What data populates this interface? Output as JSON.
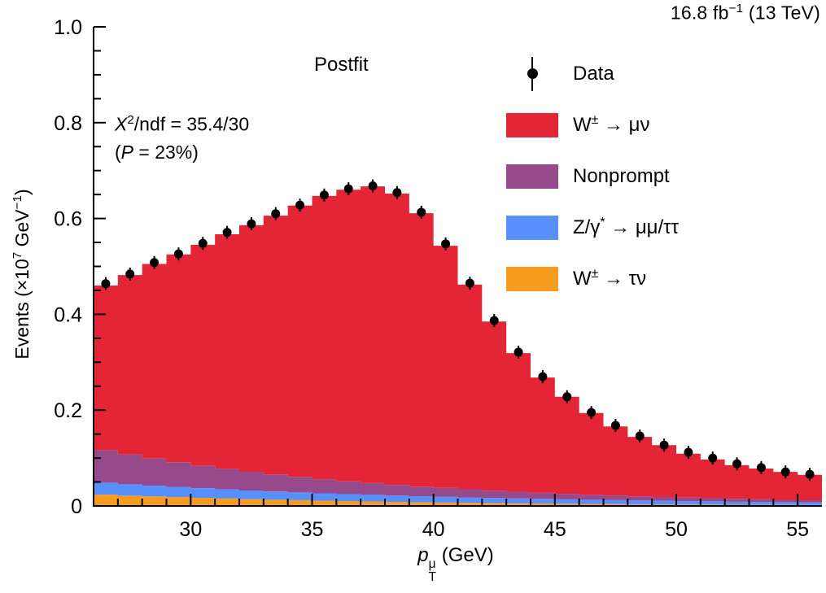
{
  "chart_data": {
    "type": "bar",
    "subtype": "stacked-histogram-with-data-points",
    "title": "Postfit",
    "lumi_label": "16.8 fb⁻¹ (13 TeV)",
    "lumi_label_html": "16.8 fb<sup>−1</sup> (13 TeV)",
    "annotation": [
      "X²/ndf = 35.4/30",
      "(P = 23%)"
    ],
    "annotation_html": [
      "<i>X</i><sup>2</sup>/ndf = 35.4/30",
      "(<i>P</i> = 23%)"
    ],
    "xlabel": "p_T^μ (GeV)",
    "xlabel_html": "<i>p</i><span class=\"stack\"><span>μ</span><span>T</span></span> (GeV)",
    "ylabel": "Events (×10⁷ GeV⁻¹)",
    "ylabel_html": "Events (×10<sup>7</sup> GeV<sup>−1</sup>)",
    "xlim": [
      26,
      56
    ],
    "ylim": [
      0,
      1.0
    ],
    "grid": false,
    "legend_position": "upper right",
    "x_ticks": {
      "values": [
        30,
        35,
        40,
        45,
        50,
        55
      ],
      "labels": [
        "30",
        "35",
        "40",
        "45",
        "50",
        "55"
      ]
    },
    "y_ticks": {
      "values": [
        0,
        0.2,
        0.4,
        0.6,
        0.8,
        1.0
      ],
      "labels": [
        "0",
        "0.2",
        "0.4",
        "0.6",
        "0.8",
        "1.0"
      ]
    },
    "x_minor_step": 1,
    "y_minor_step": 0.05,
    "bin_edges": [
      26,
      27,
      28,
      29,
      30,
      31,
      32,
      33,
      34,
      35,
      36,
      37,
      38,
      39,
      40,
      41,
      42,
      43,
      44,
      45,
      46,
      47,
      48,
      49,
      50,
      51,
      52,
      53,
      54,
      55,
      56
    ],
    "series": [
      {
        "id": "wtaunu",
        "label": "W± → τν",
        "label_html": "W<sup>±</sup> → τν",
        "color": "#f89c20",
        "values": [
          0.0235,
          0.0215,
          0.02,
          0.0185,
          0.017,
          0.0155,
          0.0142,
          0.013,
          0.012,
          0.011,
          0.0101,
          0.0093,
          0.0085,
          0.0078,
          0.0072,
          0.0066,
          0.0061,
          0.0056,
          0.0051,
          0.0047,
          0.0043,
          0.004,
          0.0037,
          0.0034,
          0.0031,
          0.0029,
          0.0026,
          0.0024,
          0.0022,
          0.002
        ]
      },
      {
        "id": "zgamma",
        "label": "Z/γ* → μμ/ττ",
        "label_html": "Z/γ<sup>*</sup> → μμ/ττ",
        "color": "#5790fc",
        "values": [
          0.025,
          0.0237,
          0.0225,
          0.0213,
          0.0202,
          0.0191,
          0.0181,
          0.0172,
          0.0163,
          0.0154,
          0.0146,
          0.0139,
          0.0131,
          0.0125,
          0.0118,
          0.0112,
          0.0106,
          0.0101,
          0.0095,
          0.009,
          0.0086,
          0.0081,
          0.0077,
          0.0073,
          0.0069,
          0.0066,
          0.0062,
          0.0059,
          0.0056,
          0.0053
        ]
      },
      {
        "id": "nonprompt",
        "label": "Nonprompt",
        "label_html": "Nonprompt",
        "color": "#964a8b",
        "values": [
          0.068,
          0.062,
          0.0565,
          0.0515,
          0.047,
          0.0428,
          0.039,
          0.0355,
          0.0324,
          0.0295,
          0.0269,
          0.0245,
          0.0223,
          0.0203,
          0.0185,
          0.0169,
          0.0154,
          0.014,
          0.0128,
          0.0116,
          0.0106,
          0.0097,
          0.0088,
          0.008,
          0.0073,
          0.0067,
          0.0061,
          0.0055,
          0.005,
          0.0046
        ]
      },
      {
        "id": "wmunu",
        "label": "W± → μν",
        "label_html": "W<sup>±</sup> → μν",
        "color": "#e42536",
        "values": [
          0.3435,
          0.3748,
          0.406,
          0.4337,
          0.4608,
          0.4896,
          0.5147,
          0.5403,
          0.5663,
          0.5911,
          0.6084,
          0.6193,
          0.6081,
          0.5704,
          0.5055,
          0.4273,
          0.3529,
          0.2893,
          0.2406,
          0.2027,
          0.1705,
          0.1442,
          0.1238,
          0.1083,
          0.0917,
          0.0808,
          0.0701,
          0.0642,
          0.0582,
          0.0531
        ]
      }
    ],
    "data_points": {
      "label": "Data",
      "label_html": "Data",
      "color": "#000000",
      "x": [
        26.5,
        27.5,
        28.5,
        29.5,
        30.5,
        31.5,
        32.5,
        33.5,
        34.5,
        35.5,
        36.5,
        37.5,
        38.5,
        39.5,
        40.5,
        41.5,
        42.5,
        43.5,
        44.5,
        45.5,
        46.5,
        47.5,
        48.5,
        49.5,
        50.5,
        51.5,
        52.5,
        53.5,
        54.5,
        55.5
      ],
      "y": [
        0.464,
        0.484,
        0.508,
        0.526,
        0.548,
        0.571,
        0.589,
        0.61,
        0.628,
        0.649,
        0.662,
        0.668,
        0.654,
        0.613,
        0.547,
        0.465,
        0.387,
        0.321,
        0.27,
        0.228,
        0.195,
        0.168,
        0.146,
        0.127,
        0.112,
        0.1,
        0.088,
        0.08,
        0.071,
        0.066
      ]
    }
  }
}
